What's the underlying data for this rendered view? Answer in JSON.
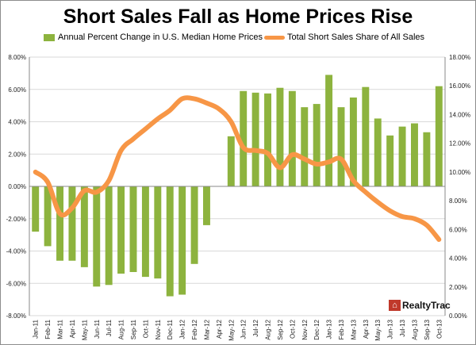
{
  "title": "Short Sales Fall as Home Prices Rise",
  "logo_text": "RealtyTrac",
  "logo_icon": "house-icon",
  "colors": {
    "bars": "#8db33e",
    "line": "#f79646",
    "gridline": "#d9d9d9",
    "axis": "#888888",
    "logo": "#c0392b"
  },
  "chart_data": {
    "type": "bar",
    "title": "Short Sales Fall as Home Prices Rise",
    "categories": [
      "Jan-11",
      "Feb-11",
      "Mar-11",
      "Apr-11",
      "May-11",
      "Jun-11",
      "Jul-11",
      "Aug-11",
      "Sep-11",
      "Oct-11",
      "Nov-11",
      "Dec-11",
      "Jan-12",
      "Feb-12",
      "Mar-12",
      "Apr-12",
      "May-12",
      "Jun-12",
      "Jul-12",
      "Aug-12",
      "Sep-12",
      "Oct-12",
      "Nov-12",
      "Dec-12",
      "Jan-13",
      "Feb-13",
      "Mar-13",
      "Apr-13",
      "May-13",
      "Jun-13",
      "Jul-13",
      "Aug-13",
      "Sep-13",
      "Oct-13"
    ],
    "series": [
      {
        "name": "Annual Percent Change in U.S. Median Home Prices",
        "type": "bar",
        "axis": "left",
        "values": [
          -2.8,
          -3.7,
          -4.6,
          -4.6,
          -5.0,
          -6.2,
          -6.1,
          -5.4,
          -5.3,
          -5.6,
          -5.7,
          -6.8,
          -6.7,
          -4.8,
          -2.4,
          null,
          3.1,
          5.9,
          5.8,
          5.75,
          6.1,
          5.9,
          4.9,
          5.1,
          6.9,
          4.9,
          5.5,
          6.15,
          4.2,
          3.15,
          3.7,
          3.9,
          3.35,
          6.2
        ]
      },
      {
        "name": "Total Short Sales Share of All Sales",
        "type": "line",
        "axis": "right",
        "values": [
          10.0,
          9.3,
          7.1,
          7.5,
          8.7,
          8.6,
          9.4,
          11.5,
          12.3,
          13.0,
          13.7,
          14.3,
          15.1,
          15.1,
          14.8,
          14.4,
          13.5,
          11.7,
          11.5,
          11.3,
          10.3,
          11.2,
          10.9,
          10.55,
          10.7,
          10.9,
          9.4,
          8.6,
          7.9,
          7.3,
          6.9,
          6.75,
          6.3,
          5.3
        ]
      }
    ],
    "y_left": {
      "ylim": [
        -8,
        8
      ],
      "ticks": [
        -8,
        -6,
        -4,
        -2,
        0,
        2,
        4,
        6,
        8
      ],
      "tick_labels": [
        "-8.00%",
        "-6.00%",
        "-4.00%",
        "-2.00%",
        "0.00%",
        "2.00%",
        "4.00%",
        "6.00%",
        "8.00%"
      ]
    },
    "y_right": {
      "ylim": [
        0,
        18
      ],
      "ticks": [
        0,
        2,
        4,
        6,
        8,
        10,
        12,
        14,
        16,
        18
      ],
      "tick_labels": [
        "0.00%",
        "2.00%",
        "4.00%",
        "6.00%",
        "8.00%",
        "10.00%",
        "12.00%",
        "14.00%",
        "16.00%",
        "18.00%"
      ]
    },
    "grid": true,
    "legend": "top-center"
  }
}
